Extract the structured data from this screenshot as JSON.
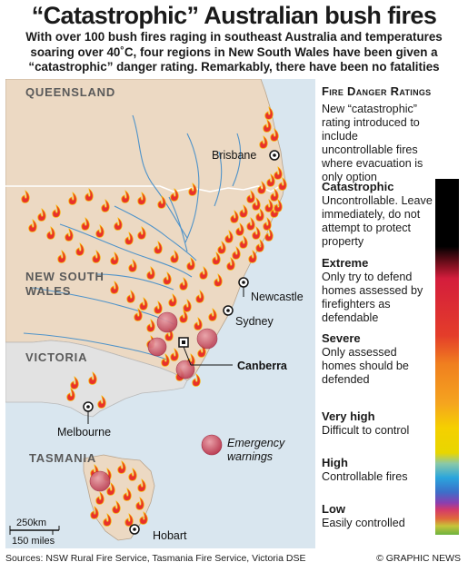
{
  "title": "“Catastrophic” Australian bush fires",
  "subtitle": "With over 100 bush fires raging in southeast Australia and temperatures soaring over 40˚C, four regions in New South Wales have been given a “catastrophic” danger rating. Remarkably, there have been no fatalities",
  "map": {
    "states": {
      "queensland": "QUEENSLAND",
      "nsw_line1": "NEW SOUTH",
      "nsw_line2": "WALES",
      "victoria": "VICTORIA",
      "tasmania": "TASMANIA"
    },
    "cities": {
      "brisbane": "Brisbane",
      "newcastle": "Newcastle",
      "sydney": "Sydney",
      "canberra": "Canberra",
      "melbourne": "Melbourne",
      "hobart": "Hobart"
    },
    "emergency_warnings_line1": "Emergency",
    "emergency_warnings_line2": "warnings",
    "scale": {
      "km": "250km",
      "miles": "150 miles"
    },
    "colors": {
      "sea": "#d9e6ef",
      "land": "#ecd9c3",
      "victoria_land": "#dedede",
      "river": "#4f93c9",
      "fire": "#e8312c",
      "emergency": "#c85a6a"
    }
  },
  "legend": {
    "title": "Fire Danger Ratings",
    "note": "New “catastrophic” rating introduced to include uncontrollable fires where evacuation is only option",
    "ratings": [
      {
        "name": "Catastrophic",
        "desc": "Uncontrollable. Leave immediately, do not attempt to protect property",
        "color": "#000000"
      },
      {
        "name": "Extreme",
        "desc": "Only try to defend homes assessed by firefighters as defendable",
        "color": "#d41d3c"
      },
      {
        "name": "Severe",
        "desc": "Only assessed homes should be defended",
        "color": "#f07f1f"
      },
      {
        "name": "Very high",
        "desc": "Difficult to control",
        "color": "#f5d000"
      },
      {
        "name": "High",
        "desc": "Controllable fires",
        "color": "#2aa5dd"
      },
      {
        "name": "Low",
        "desc": "Easily controlled",
        "color": "#6db33f"
      }
    ]
  },
  "sources": "Sources: NSW Rural Fire Service, Tasmania Fire Service, Victoria DSE",
  "credit": "© GRAPHIC NEWS"
}
